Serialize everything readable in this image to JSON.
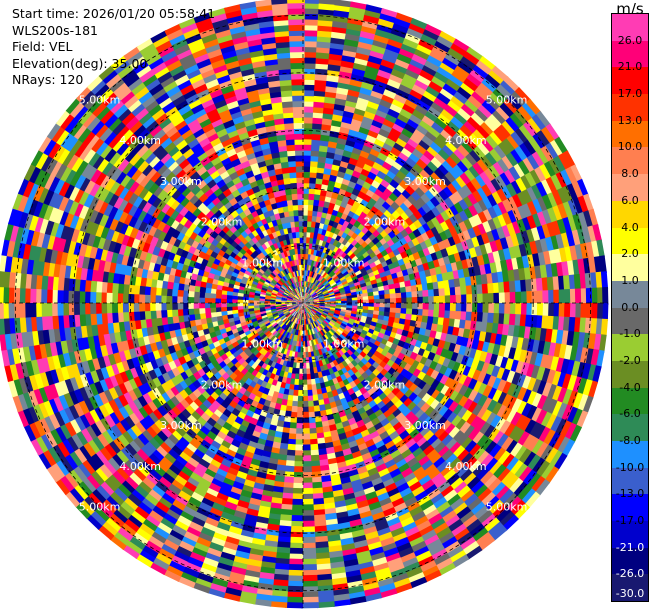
{
  "header": {
    "start_time": "Start time: 2026/01/20 05:58:41",
    "instrument": "WLS200s-181",
    "field": "Field: VEL",
    "elevation": "Elevation(deg): 35.00",
    "nrays": "NRays: 120"
  },
  "ppi": {
    "nrays": 120,
    "range_max_km": 5.3,
    "ring_labels_km": [
      {
        "text": "1.00km",
        "km": 1
      },
      {
        "text": "2.00km",
        "km": 2
      },
      {
        "text": "3.00km",
        "km": 3
      },
      {
        "text": "4.00km",
        "km": 4
      },
      {
        "text": "5.00km",
        "km": 5
      }
    ],
    "label_azimuths_deg": [
      315,
      45,
      135,
      225
    ]
  },
  "colorbar": {
    "unit": "m/s",
    "levels": [
      {
        "label": "26.0",
        "color": "#ff3cb4"
      },
      {
        "label": "21.0",
        "color": "#ff0078"
      },
      {
        "label": "17.0",
        "color": "#ff0000"
      },
      {
        "label": "13.0",
        "color": "#ff3200"
      },
      {
        "label": "10.0",
        "color": "#ff6f00"
      },
      {
        "label": "8.0",
        "color": "#ff7f50"
      },
      {
        "label": "6.0",
        "color": "#ffa07a"
      },
      {
        "label": "4.0",
        "color": "#ffd700"
      },
      {
        "label": "2.0",
        "color": "#ffff00"
      },
      {
        "label": "1.0",
        "color": "#ffff9e"
      },
      {
        "label": "0.0",
        "color": "#778899"
      },
      {
        "label": "-1.0",
        "color": "#696969"
      },
      {
        "label": "-2.0",
        "color": "#9acd32"
      },
      {
        "label": "-4.0",
        "color": "#6b8e23"
      },
      {
        "label": "-6.0",
        "color": "#228b22"
      },
      {
        "label": "-8.0",
        "color": "#2e8b57"
      },
      {
        "label": "-10.0",
        "color": "#1e90ff"
      },
      {
        "label": "-13.0",
        "color": "#3a5fcd"
      },
      {
        "label": "-17.0",
        "color": "#0000ff"
      },
      {
        "label": "-21.0",
        "color": "#0000cd"
      },
      {
        "label": "-26.0",
        "color": "#000080"
      },
      {
        "label": "-30.0",
        "color": "#191970"
      }
    ]
  }
}
